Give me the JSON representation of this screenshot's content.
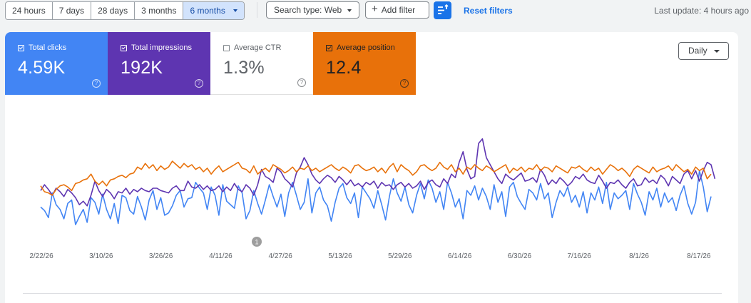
{
  "toolbar": {
    "ranges": [
      "24 hours",
      "7 days",
      "28 days",
      "3 months",
      "6 months"
    ],
    "active_range": "6 months",
    "search_type_label": "Search type: Web",
    "add_filter_label": "Add filter",
    "reset_filters_label": "Reset filters",
    "last_update": "Last update: 4 hours ago"
  },
  "metrics": {
    "clicks": {
      "label": "Total clicks",
      "value": "4.59K",
      "checked": true
    },
    "impressions": {
      "label": "Total impressions",
      "value": "192K",
      "checked": true
    },
    "ctr": {
      "label": "Average CTR",
      "value": "1.3%",
      "checked": false
    },
    "position": {
      "label": "Average position",
      "value": "12.4",
      "checked": true
    }
  },
  "granularity": {
    "label": "Daily"
  },
  "colors": {
    "clicks": "#4285f4",
    "impressions": "#5e35b1",
    "position": "#e8710a",
    "accent": "#1a73e8"
  },
  "chart_data": {
    "type": "line",
    "x_tick_labels": [
      "2/22/26",
      "3/10/26",
      "3/26/26",
      "4/11/26",
      "4/27/26",
      "5/13/26",
      "5/29/26",
      "6/14/26",
      "6/30/26",
      "7/16/26",
      "8/1/26",
      "8/17/26"
    ],
    "annotation": {
      "label": "1",
      "date": "4/21/26"
    },
    "series": [
      {
        "key": "clicks",
        "values": [
          24,
          21,
          15,
          36,
          26,
          22,
          14,
          27,
          30,
          9,
          16,
          22,
          11,
          32,
          28,
          18,
          35,
          22,
          14,
          27,
          10,
          34,
          32,
          21,
          18,
          33,
          24,
          13,
          30,
          38,
          22,
          32,
          17,
          19,
          25,
          34,
          38,
          24,
          31,
          32,
          45,
          40,
          36,
          22,
          41,
          34,
          17,
          43,
          29,
          26,
          23,
          42,
          36,
          14,
          21,
          38,
          27,
          18,
          30,
          43,
          33,
          24,
          35,
          16,
          36,
          45,
          34,
          22,
          28,
          48,
          19,
          36,
          41,
          30,
          25,
          12,
          28,
          40,
          44,
          32,
          27,
          36,
          15,
          41,
          36,
          31,
          23,
          38,
          26,
          13,
          33,
          48,
          36,
          29,
          41,
          26,
          19,
          34,
          44,
          31,
          47,
          40,
          28,
          37,
          22,
          45,
          36,
          24,
          31,
          14,
          38,
          34,
          42,
          30,
          40,
          33,
          22,
          43,
          28,
          37,
          16,
          41,
          45,
          33,
          27,
          22,
          39,
          36,
          30,
          44,
          31,
          36,
          15,
          28,
          38,
          33,
          41,
          28,
          34,
          24,
          37,
          19,
          36,
          30,
          41,
          27,
          45,
          22,
          36,
          31,
          34,
          38,
          22,
          44,
          35,
          28,
          17,
          37,
          30,
          40,
          24,
          36,
          28,
          32,
          21,
          34,
          42,
          27,
          18,
          28,
          55,
          41,
          20,
          33
        ]
      },
      {
        "key": "impressions",
        "values": [
          38,
          43,
          39,
          34,
          40,
          37,
          33,
          39,
          36,
          32,
          26,
          29,
          25,
          34,
          46,
          38,
          33,
          39,
          36,
          31,
          37,
          36,
          40,
          35,
          39,
          37,
          40,
          38,
          37,
          40,
          40,
          38,
          37,
          36,
          40,
          42,
          38,
          38,
          46,
          41,
          40,
          43,
          39,
          42,
          38,
          39,
          42,
          37,
          41,
          38,
          44,
          39,
          37,
          43,
          40,
          34,
          43,
          56,
          50,
          48,
          45,
          57,
          54,
          48,
          45,
          41,
          53,
          58,
          66,
          60,
          52,
          47,
          44,
          48,
          51,
          49,
          45,
          50,
          47,
          43,
          47,
          42,
          44,
          41,
          45,
          43,
          46,
          40,
          45,
          42,
          43,
          39,
          43,
          45,
          41,
          44,
          40,
          42,
          46,
          39,
          45,
          47,
          43,
          41,
          48,
          44,
          52,
          49,
          62,
          71,
          56,
          48,
          50,
          78,
          82,
          66,
          60,
          54,
          48,
          44,
          52,
          49,
          47,
          50,
          53,
          46,
          47,
          49,
          45,
          56,
          51,
          43,
          47,
          44,
          49,
          46,
          42,
          45,
          50,
          48,
          52,
          47,
          45,
          44,
          51,
          46,
          40,
          45,
          44,
          47,
          43,
          40,
          45,
          48,
          42,
          43,
          49,
          45,
          47,
          44,
          51,
          48,
          42,
          50,
          47,
          44,
          52,
          55,
          48,
          55,
          46,
          55,
          62,
          60,
          48
        ]
      },
      {
        "key": "position",
        "values": [
          42,
          37,
          36,
          34,
          39,
          42,
          43,
          41,
          38,
          44,
          45,
          47,
          48,
          52,
          46,
          43,
          46,
          42,
          47,
          48,
          50,
          51,
          49,
          52,
          53,
          58,
          56,
          61,
          57,
          60,
          55,
          59,
          56,
          58,
          63,
          60,
          57,
          61,
          58,
          60,
          56,
          58,
          54,
          57,
          52,
          56,
          59,
          54,
          56,
          58,
          60,
          62,
          57,
          56,
          53,
          59,
          52,
          55,
          57,
          54,
          60,
          58,
          56,
          53,
          55,
          58,
          54,
          57,
          56,
          59,
          55,
          57,
          54,
          56,
          58,
          60,
          57,
          55,
          58,
          56,
          53,
          59,
          60,
          57,
          55,
          56,
          58,
          54,
          57,
          53,
          58,
          61,
          54,
          60,
          57,
          55,
          51,
          54,
          59,
          60,
          57,
          55,
          57,
          62,
          58,
          56,
          60,
          54,
          57,
          52,
          58,
          56,
          60,
          57,
          55,
          59,
          57,
          54,
          56,
          58,
          60,
          53,
          57,
          55,
          58,
          54,
          57,
          56,
          60,
          55,
          58,
          57,
          54,
          59,
          57,
          55,
          53,
          58,
          57,
          59,
          56,
          54,
          58,
          55,
          57,
          52,
          56,
          60,
          58,
          55,
          57,
          54,
          50,
          56,
          59,
          57,
          55,
          53,
          58,
          54,
          56,
          57,
          59,
          55,
          60,
          57,
          54,
          56,
          52,
          58,
          55,
          57,
          48,
          52
        ]
      }
    ]
  }
}
